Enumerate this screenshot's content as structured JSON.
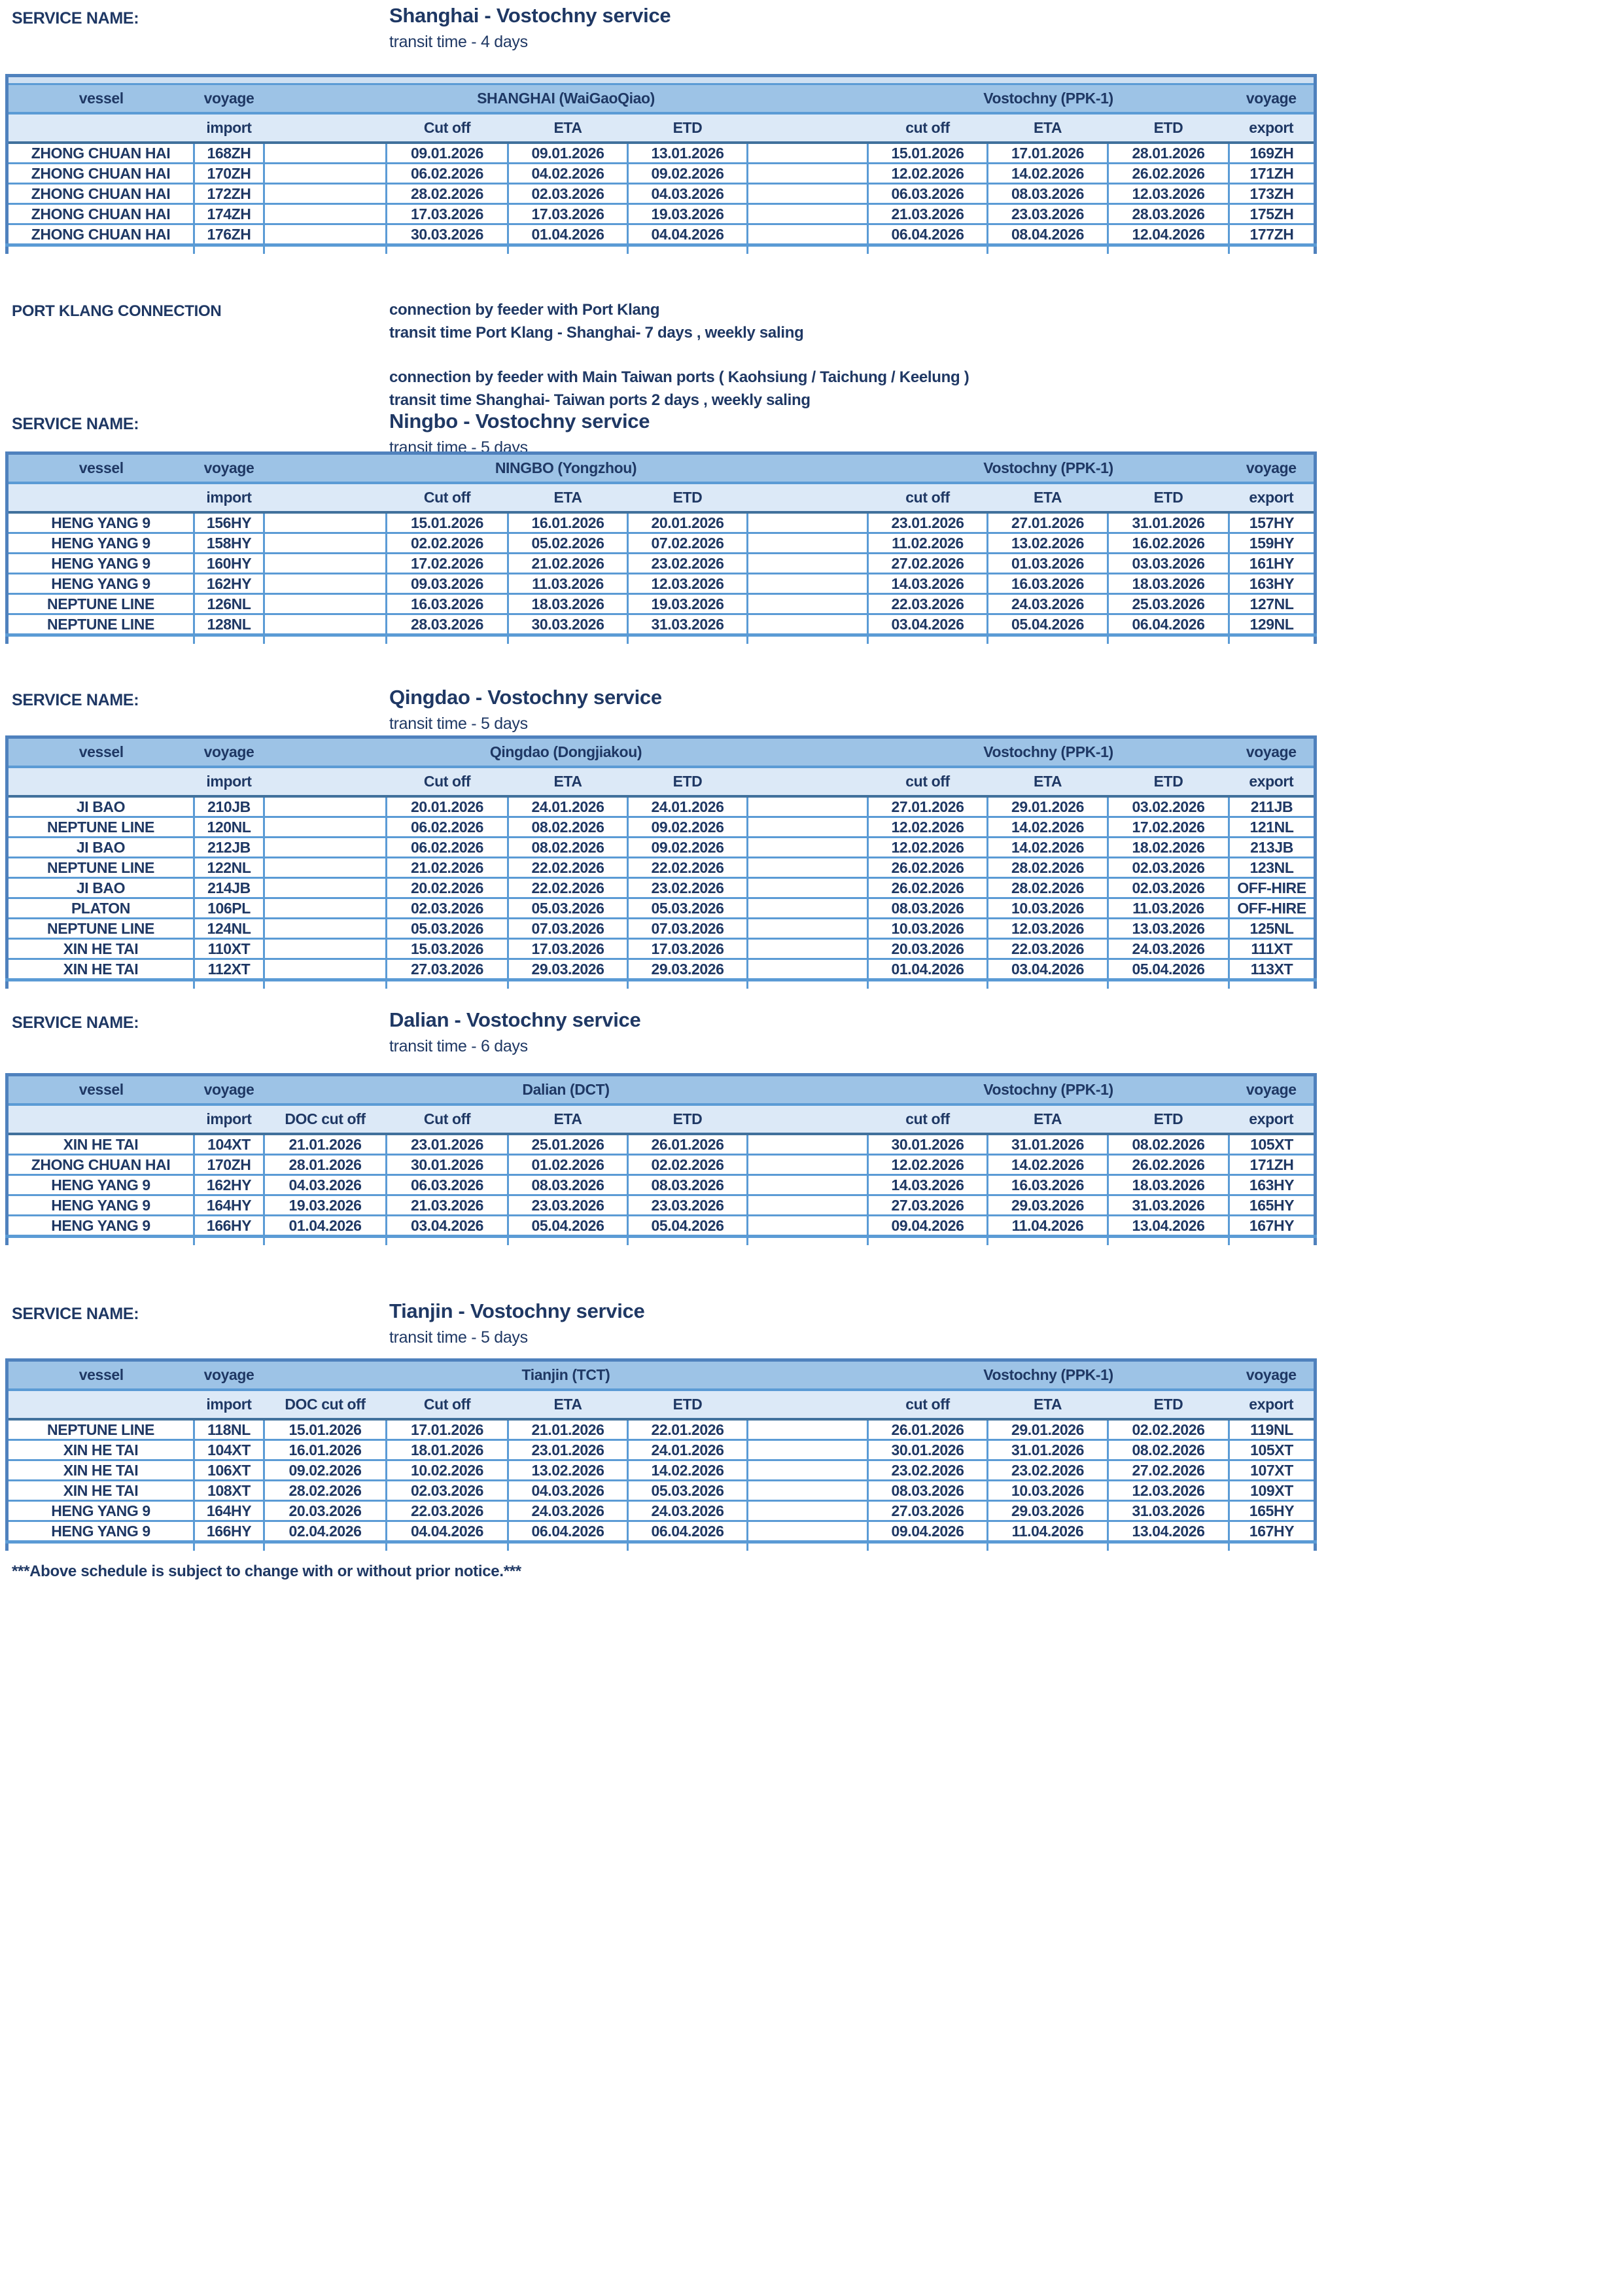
{
  "page": {
    "service_label": "SERVICE NAME:",
    "footer_note": "***Above schedule is subject to change with or without  prior notice.***",
    "colors": {
      "header_band": "#9dc3e6",
      "subheader_band": "#dce9f7",
      "grid_line": "#5b9bd5",
      "outer_border": "#4f81bd",
      "text": "#1f3864"
    }
  },
  "port_klang": {
    "label": "PORT KLANG CONNECTION",
    "lines": [
      "connection by feeder with Port Klang",
      "transit time Port Klang - Shanghai-  7 days , weekly saling",
      "connection by feeder with Main Taiwan ports ( Kaohsiung / Taichung / Keelung )",
      "transit time Shanghai- Taiwan ports 2 days , weekly saling"
    ]
  },
  "shared_headers": {
    "vessel": "vessel",
    "voyage": "voyage",
    "import": "import",
    "doc_cut_off": "DOC cut off",
    "origin_cut_off": "Cut off",
    "eta": "ETA",
    "etd": "ETD",
    "dest_cut_off": "cut off",
    "export": "export",
    "dest_port": "Vostochny (PPK-1)"
  },
  "services": [
    {
      "id": "shanghai",
      "title": "Shanghai -  Vostochny service",
      "transit": "transit time - 4 days",
      "origin_port": "SHANGHAI (WaiGaoQiao)",
      "dest_port": "Vostochny (PPK-1)",
      "doc_cutoff_column": false,
      "top_strip": true,
      "rows": [
        [
          "ZHONG CHUAN HAI",
          "168ZH",
          "",
          "09.01.2026",
          "09.01.2026",
          "13.01.2026",
          "15.01.2026",
          "17.01.2026",
          "28.01.2026",
          "169ZH"
        ],
        [
          "ZHONG CHUAN HAI",
          "170ZH",
          "",
          "06.02.2026",
          "04.02.2026",
          "09.02.2026",
          "12.02.2026",
          "14.02.2026",
          "26.02.2026",
          "171ZH"
        ],
        [
          "ZHONG CHUAN HAI",
          "172ZH",
          "",
          "28.02.2026",
          "02.03.2026",
          "04.03.2026",
          "06.03.2026",
          "08.03.2026",
          "12.03.2026",
          "173ZH"
        ],
        [
          "ZHONG CHUAN HAI",
          "174ZH",
          "",
          "17.03.2026",
          "17.03.2026",
          "19.03.2026",
          "21.03.2026",
          "23.03.2026",
          "28.03.2026",
          "175ZH"
        ],
        [
          "ZHONG CHUAN HAI",
          "176ZH",
          "",
          "30.03.2026",
          "01.04.2026",
          "04.04.2026",
          "06.04.2026",
          "08.04.2026",
          "12.04.2026",
          "177ZH"
        ]
      ]
    },
    {
      "id": "ningbo",
      "title": "Ningbo -  Vostochny service",
      "transit": "transit time - 5 days",
      "origin_port": "NINGBO (Yongzhou)",
      "dest_port": "Vostochny (PPK-1)",
      "doc_cutoff_column": false,
      "top_strip": false,
      "rows": [
        [
          "HENG YANG 9",
          "156HY",
          "",
          "15.01.2026",
          "16.01.2026",
          "20.01.2026",
          "23.01.2026",
          "27.01.2026",
          "31.01.2026",
          "157HY"
        ],
        [
          "HENG YANG 9",
          "158HY",
          "",
          "02.02.2026",
          "05.02.2026",
          "07.02.2026",
          "11.02.2026",
          "13.02.2026",
          "16.02.2026",
          "159HY"
        ],
        [
          "HENG YANG 9",
          "160HY",
          "",
          "17.02.2026",
          "21.02.2026",
          "23.02.2026",
          "27.02.2026",
          "01.03.2026",
          "03.03.2026",
          "161HY"
        ],
        [
          "HENG YANG 9",
          "162HY",
          "",
          "09.03.2026",
          "11.03.2026",
          "12.03.2026",
          "14.03.2026",
          "16.03.2026",
          "18.03.2026",
          "163HY"
        ],
        [
          "NEPTUNE LINE",
          "126NL",
          "",
          "16.03.2026",
          "18.03.2026",
          "19.03.2026",
          "22.03.2026",
          "24.03.2026",
          "25.03.2026",
          "127NL"
        ],
        [
          "NEPTUNE LINE",
          "128NL",
          "",
          "28.03.2026",
          "30.03.2026",
          "31.03.2026",
          "03.04.2026",
          "05.04.2026",
          "06.04.2026",
          "129NL"
        ]
      ]
    },
    {
      "id": "qingdao",
      "title": "Qingdao - Vostochny service",
      "transit": "transit time - 5 days",
      "origin_port": "Qingdao (Dongjiakou)",
      "dest_port": "Vostochny (PPK-1)",
      "doc_cutoff_column": false,
      "top_strip": false,
      "rows": [
        [
          "JI BAO",
          "210JB",
          "",
          "20.01.2026",
          "24.01.2026",
          "24.01.2026",
          "27.01.2026",
          "29.01.2026",
          "03.02.2026",
          "211JB"
        ],
        [
          "NEPTUNE LINE",
          "120NL",
          "",
          "06.02.2026",
          "08.02.2026",
          "09.02.2026",
          "12.02.2026",
          "14.02.2026",
          "17.02.2026",
          "121NL"
        ],
        [
          "JI BAO",
          "212JB",
          "",
          "06.02.2026",
          "08.02.2026",
          "09.02.2026",
          "12.02.2026",
          "14.02.2026",
          "18.02.2026",
          "213JB"
        ],
        [
          "NEPTUNE LINE",
          "122NL",
          "",
          "21.02.2026",
          "22.02.2026",
          "22.02.2026",
          "26.02.2026",
          "28.02.2026",
          "02.03.2026",
          "123NL"
        ],
        [
          "JI BAO",
          "214JB",
          "",
          "20.02.2026",
          "22.02.2026",
          "23.02.2026",
          "26.02.2026",
          "28.02.2026",
          "02.03.2026",
          "OFF-HIRE"
        ],
        [
          "PLATON",
          "106PL",
          "",
          "02.03.2026",
          "05.03.2026",
          "05.03.2026",
          "08.03.2026",
          "10.03.2026",
          "11.03.2026",
          "OFF-HIRE"
        ],
        [
          "NEPTUNE LINE",
          "124NL",
          "",
          "05.03.2026",
          "07.03.2026",
          "07.03.2026",
          "10.03.2026",
          "12.03.2026",
          "13.03.2026",
          "125NL"
        ],
        [
          "XIN HE TAI",
          "110XT",
          "",
          "15.03.2026",
          "17.03.2026",
          "17.03.2026",
          "20.03.2026",
          "22.03.2026",
          "24.03.2026",
          "111XT"
        ],
        [
          "XIN HE TAI",
          "112XT",
          "",
          "27.03.2026",
          "29.03.2026",
          "29.03.2026",
          "01.04.2026",
          "03.04.2026",
          "05.04.2026",
          "113XT"
        ]
      ]
    },
    {
      "id": "dalian",
      "title": "Dalian - Vostochny service",
      "transit": "transit time - 6 days",
      "origin_port": "Dalian (DCT)",
      "dest_port": "Vostochny (PPK-1)",
      "doc_cutoff_column": true,
      "top_strip": false,
      "rows": [
        [
          "XIN HE TAI",
          "104XT",
          "21.01.2026",
          "23.01.2026",
          "25.01.2026",
          "26.01.2026",
          "30.01.2026",
          "31.01.2026",
          "08.02.2026",
          "105XT"
        ],
        [
          "ZHONG CHUAN HAI",
          "170ZH",
          "28.01.2026",
          "30.01.2026",
          "01.02.2026",
          "02.02.2026",
          "12.02.2026",
          "14.02.2026",
          "26.02.2026",
          "171ZH"
        ],
        [
          "HENG YANG 9",
          "162HY",
          "04.03.2026",
          "06.03.2026",
          "08.03.2026",
          "08.03.2026",
          "14.03.2026",
          "16.03.2026",
          "18.03.2026",
          "163HY"
        ],
        [
          "HENG YANG 9",
          "164HY",
          "19.03.2026",
          "21.03.2026",
          "23.03.2026",
          "23.03.2026",
          "27.03.2026",
          "29.03.2026",
          "31.03.2026",
          "165HY"
        ],
        [
          "HENG YANG 9",
          "166HY",
          "01.04.2026",
          "03.04.2026",
          "05.04.2026",
          "05.04.2026",
          "09.04.2026",
          "11.04.2026",
          "13.04.2026",
          "167HY"
        ]
      ]
    },
    {
      "id": "tianjin",
      "title": "Tianjin - Vostochny service",
      "transit": "transit time - 5 days",
      "origin_port": "Tianjin (TCT)",
      "dest_port": "Vostochny (PPK-1)",
      "doc_cutoff_column": true,
      "top_strip": false,
      "rows": [
        [
          "NEPTUNE LINE",
          "118NL",
          "15.01.2026",
          "17.01.2026",
          "21.01.2026",
          "22.01.2026",
          "26.01.2026",
          "29.01.2026",
          "02.02.2026",
          "119NL"
        ],
        [
          "XIN HE TAI",
          "104XT",
          "16.01.2026",
          "18.01.2026",
          "23.01.2026",
          "24.01.2026",
          "30.01.2026",
          "31.01.2026",
          "08.02.2026",
          "105XT"
        ],
        [
          "XIN HE TAI",
          "106XT",
          "09.02.2026",
          "10.02.2026",
          "13.02.2026",
          "14.02.2026",
          "23.02.2026",
          "23.02.2026",
          "27.02.2026",
          "107XT"
        ],
        [
          "XIN HE TAI",
          "108XT",
          "28.02.2026",
          "02.03.2026",
          "04.03.2026",
          "05.03.2026",
          "08.03.2026",
          "10.03.2026",
          "12.03.2026",
          "109XT"
        ],
        [
          "HENG YANG 9",
          "164HY",
          "20.03.2026",
          "22.03.2026",
          "24.03.2026",
          "24.03.2026",
          "27.03.2026",
          "29.03.2026",
          "31.03.2026",
          "165HY"
        ],
        [
          "HENG YANG 9",
          "166HY",
          "02.04.2026",
          "04.04.2026",
          "06.04.2026",
          "06.04.2026",
          "09.04.2026",
          "11.04.2026",
          "13.04.2026",
          "167HY"
        ]
      ]
    }
  ]
}
